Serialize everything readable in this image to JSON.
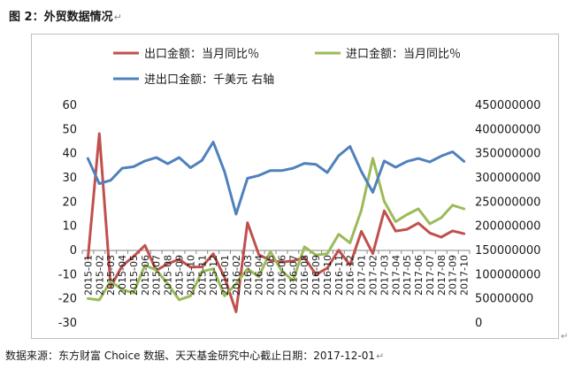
{
  "figure": {
    "title": "图 2：外贸数据情况",
    "source": "数据来源：东方财富 Choice 数据、天天基金研究中心截止日期：2017-12-01",
    "para_mark": "↵"
  },
  "chart_data": {
    "type": "line",
    "title": "",
    "x": [
      "2015-01",
      "2015-02",
      "2015-03",
      "2015-04",
      "2015-05",
      "2015-06",
      "2015-07",
      "2015-08",
      "2015-09",
      "2015-10",
      "2015-11",
      "2015-12",
      "2016-01",
      "2016-02",
      "2016-03",
      "2016-04",
      "2016-05",
      "2016-06",
      "2016-07",
      "2016-08",
      "2016-09",
      "2016-10",
      "2016-11",
      "2016-12",
      "2017-01",
      "2017-02",
      "2017-03",
      "2017-04",
      "2017-05",
      "2017-06",
      "2017-07",
      "2017-08",
      "2017-09",
      "2017-10"
    ],
    "y_left": {
      "ylim": [
        -30,
        60
      ],
      "ticks": [
        -30,
        -20,
        -10,
        0,
        10,
        20,
        30,
        40,
        50,
        60
      ]
    },
    "y_right": {
      "ylim": [
        0,
        450000000
      ],
      "ticks": [
        0,
        50000000,
        100000000,
        150000000,
        200000000,
        250000000,
        300000000,
        350000000,
        400000000,
        450000000
      ],
      "tick_labels": [
        "0",
        "50000000",
        "100000000",
        "150000000",
        "200000000",
        "250000000",
        "300000000",
        "350000000",
        "400000000",
        "450000000"
      ]
    },
    "grid": false,
    "legend_position": "top",
    "series": [
      {
        "name": "出口金额：当月同比％",
        "axis": "left",
        "color": "#c0504d",
        "values": [
          -3.3,
          48.3,
          -15,
          -6.4,
          -2.5,
          2.1,
          -8.3,
          -5.5,
          -3.7,
          -6.9,
          -6.8,
          -1.4,
          -11.2,
          -25.4,
          11.5,
          -1.8,
          -4.1,
          -4.8,
          -4.4,
          -2.8,
          -10,
          -7.3,
          0.1,
          -6.1,
          7.9,
          -1.3,
          16.4,
          8,
          8.7,
          11.3,
          7.2,
          5.5,
          8.1,
          6.9
        ]
      },
      {
        "name": "进口金额：当月同比％",
        "axis": "left",
        "color": "#9bbb59",
        "values": [
          -19.9,
          -20.5,
          -12.7,
          -16.2,
          -17.6,
          -6.1,
          -8.1,
          -13.8,
          -20.4,
          -18.8,
          -8.7,
          -7.6,
          -18.8,
          -13.8,
          -7.6,
          -10.9,
          -0.4,
          -8.4,
          -12.5,
          1.5,
          -1.9,
          -1.4,
          6.7,
          3.1,
          16.7,
          38.1,
          20.3,
          11.9,
          14.8,
          17.2,
          11,
          13.5,
          18.7,
          17.2
        ]
      },
      {
        "name": "进出口金额：千美元 右轴",
        "axis": "right",
        "color": "#4f81bd",
        "values": [
          340000000,
          288000000,
          295000000,
          320000000,
          323000000,
          335000000,
          342000000,
          329000000,
          342000000,
          321000000,
          336000000,
          374000000,
          312000000,
          225000000,
          299000000,
          305000000,
          315000000,
          315000000,
          320000000,
          330000000,
          328000000,
          311000000,
          346000000,
          365000000,
          313000000,
          270000000,
          335000000,
          322000000,
          334000000,
          340000000,
          333000000,
          345000000,
          354000000,
          334000000
        ]
      }
    ]
  }
}
